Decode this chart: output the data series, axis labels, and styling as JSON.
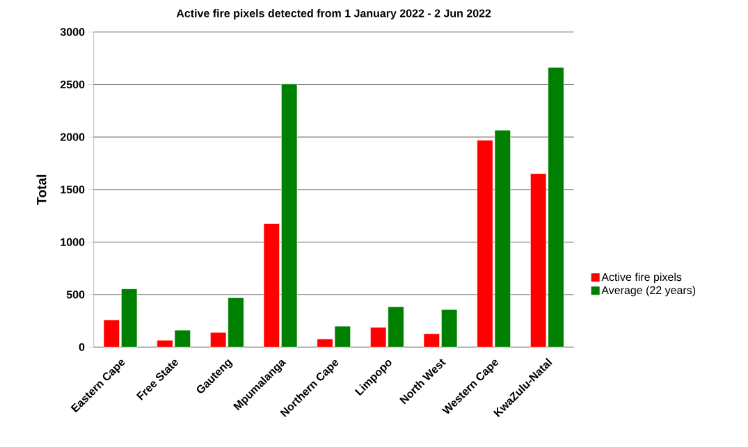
{
  "chart_data": {
    "type": "bar",
    "title": "Active fire pixels detected from 1 January  2022 - 2 Jun 2022",
    "ylabel": "Total",
    "categories": [
      "Eastern Cape",
      "Free State",
      "Gauteng",
      "Mpumalanga",
      "Northern Cape",
      "Limpopo",
      "North West",
      "Western Cape",
      "KwaZulu-Natal"
    ],
    "series": [
      {
        "name": "Active fire pixels",
        "color": "#ff0000",
        "values": [
          260,
          66,
          140,
          1177,
          77,
          188,
          128,
          1969,
          1652
        ]
      },
      {
        "name": "Average (22 years)",
        "color": "#008000",
        "values": [
          555,
          161,
          471,
          2505,
          200,
          384,
          358,
          2066,
          2662
        ]
      }
    ],
    "ylim": [
      0,
      3000
    ],
    "yticks": [
      0,
      500,
      1000,
      1500,
      2000,
      2500,
      3000
    ],
    "grid": "y",
    "legend": "right"
  }
}
